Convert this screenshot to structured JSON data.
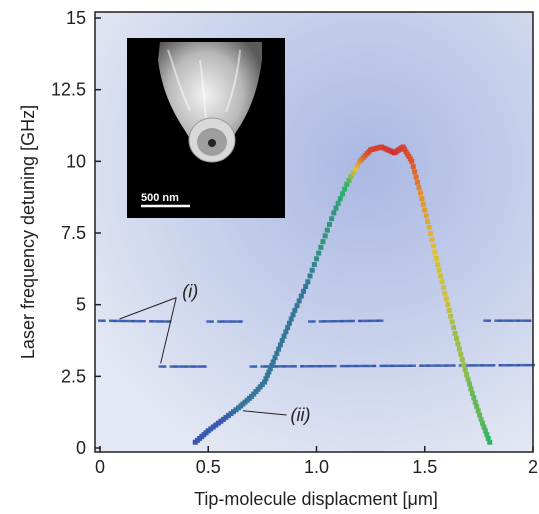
{
  "chart_data": {
    "type": "scatter",
    "xlabel": "Tip-molecule displacment [μm]",
    "ylabel": "Laser frequency detuning [GHz]",
    "xlim": [
      0,
      2
    ],
    "ylim": [
      0,
      15
    ],
    "x_ticks": [
      "0",
      "0.5",
      "1.0",
      "1.5",
      "2"
    ],
    "y_ticks": [
      "0",
      "2.5",
      "5",
      "7.5",
      "10",
      "12.5",
      "15"
    ],
    "x_tick_values": [
      0,
      0.5,
      1.0,
      1.5,
      2.0
    ],
    "y_tick_values": [
      0,
      2.5,
      5,
      7.5,
      10,
      12.5,
      15
    ],
    "grid": false,
    "colormap": [
      "#c8cfe8",
      "#7a8fd4",
      "#3a4fb8",
      "#2fb36a",
      "#e2c232",
      "#e05a2a",
      "#c8203a"
    ],
    "series": [
      {
        "label": "(ii)",
        "points": [
          [
            0.44,
            0.2
          ],
          [
            0.5,
            0.6
          ],
          [
            0.57,
            1.0
          ],
          [
            0.64,
            1.4
          ],
          [
            0.7,
            1.8
          ],
          [
            0.76,
            2.3
          ],
          [
            0.8,
            3.0
          ],
          [
            0.85,
            3.9
          ],
          [
            0.9,
            4.8
          ],
          [
            0.96,
            5.8
          ],
          [
            1.02,
            7.0
          ],
          [
            1.08,
            8.2
          ],
          [
            1.14,
            9.2
          ],
          [
            1.2,
            10.0
          ],
          [
            1.25,
            10.4
          ],
          [
            1.3,
            10.5
          ],
          [
            1.36,
            10.3
          ],
          [
            1.4,
            10.5
          ],
          [
            1.44,
            10.0
          ],
          [
            1.48,
            8.9
          ],
          [
            1.52,
            7.7
          ],
          [
            1.56,
            6.4
          ],
          [
            1.6,
            5.2
          ],
          [
            1.64,
            4.0
          ],
          [
            1.68,
            2.9
          ],
          [
            1.72,
            1.9
          ],
          [
            1.76,
            1.0
          ],
          [
            1.8,
            0.2
          ]
        ],
        "intensity": [
          0.35,
          0.35,
          0.35,
          0.4,
          0.4,
          0.4,
          0.4,
          0.4,
          0.4,
          0.4,
          0.45,
          0.45,
          0.5,
          0.75,
          0.9,
          0.9,
          0.95,
          0.9,
          0.85,
          0.75,
          0.7,
          0.65,
          0.65,
          0.6,
          0.6,
          0.55,
          0.55,
          0.5
        ]
      },
      {
        "label": "(i)",
        "segments": [
          [
            [
              0.0,
              4.45
            ],
            [
              0.32,
              4.42
            ]
          ],
          [
            [
              0.5,
              4.42
            ],
            [
              0.65,
              4.42
            ]
          ],
          [
            [
              0.97,
              4.42
            ],
            [
              1.3,
              4.45
            ]
          ],
          [
            [
              1.78,
              4.45
            ],
            [
              2.0,
              4.45
            ]
          ],
          [
            [
              0.28,
              2.85
            ],
            [
              0.5,
              2.85
            ]
          ],
          [
            [
              0.7,
              2.85
            ],
            [
              2.0,
              2.9
            ]
          ]
        ]
      }
    ],
    "annotations": [
      {
        "text": "(i)",
        "x": 0.38,
        "y": 5.35
      },
      {
        "text": "(ii)",
        "x": 0.88,
        "y": 1.15
      }
    ],
    "inset": {
      "scale_bar_label": "500 nm"
    }
  }
}
